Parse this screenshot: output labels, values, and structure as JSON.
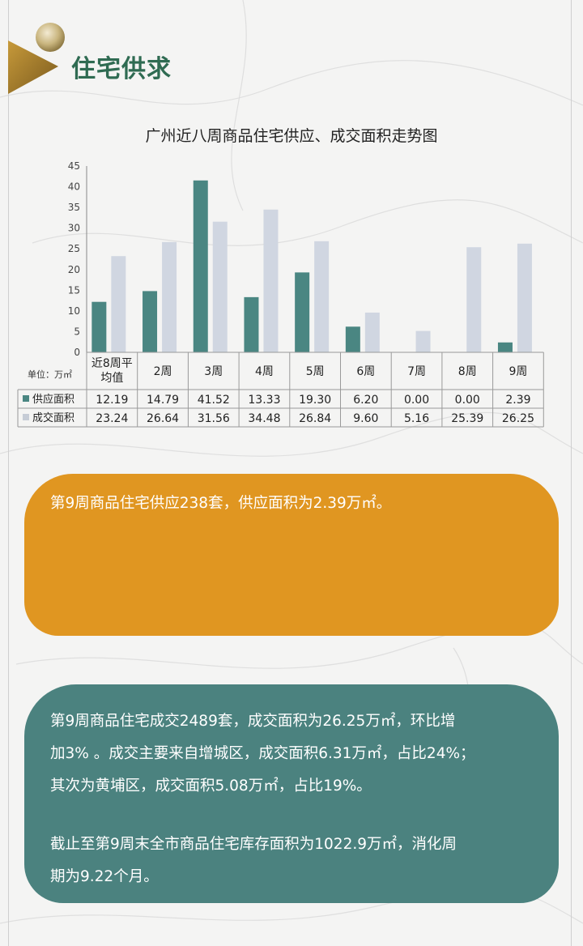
{
  "section": {
    "title": "住宅供求"
  },
  "chart_data": {
    "type": "bar",
    "title": "广州近八周商品住宅供应、成交面积走势图",
    "unit_label": "单位：万㎡",
    "categories": [
      "近8周平均值",
      "2周",
      "3周",
      "4周",
      "5周",
      "6周",
      "7周",
      "8周",
      "9周"
    ],
    "category_lines": [
      [
        "近8周平",
        "均值"
      ],
      [
        "2周"
      ],
      [
        "3周"
      ],
      [
        "4周"
      ],
      [
        "5周"
      ],
      [
        "6周"
      ],
      [
        "7周"
      ],
      [
        "8周"
      ],
      [
        "9周"
      ]
    ],
    "ylim": [
      0,
      45
    ],
    "yticks": [
      0,
      5,
      10,
      15,
      20,
      25,
      30,
      35,
      40,
      45
    ],
    "series": [
      {
        "name": "供应面积",
        "color": "#4a8682",
        "values": [
          12.19,
          14.79,
          41.52,
          13.33,
          19.3,
          6.2,
          0.0,
          0.0,
          2.39
        ],
        "labels": [
          "12.19",
          "14.79",
          "41.52",
          "13.33",
          "19.30",
          "6.20",
          "0.00",
          "0.00",
          "2.39"
        ]
      },
      {
        "name": "成交面积",
        "color": "#d0d6e1",
        "values": [
          23.24,
          26.64,
          31.56,
          34.48,
          26.84,
          9.6,
          5.16,
          25.39,
          26.25
        ],
        "labels": [
          "23.24",
          "26.64",
          "31.56",
          "34.48",
          "26.84",
          "9.60",
          "5.16",
          "25.39",
          "26.25"
        ]
      }
    ],
    "data_table": true,
    "grid": false
  },
  "supply_card": {
    "text": "第9周商品住宅供应238套，供应面积为2.39万㎡。"
  },
  "deal_card": {
    "line1": "第9周商品住宅成交2489套，成交面积为26.25万㎡，环比增",
    "line2": "加3% 。成交主要来自增城区，成交面积6.31万㎡，占比24%；",
    "line3": "其次为黄埔区，成交面积5.08万㎡，占比19%。",
    "line4": "截止至第9周末全市商品住宅库存面积为1022.9万㎡，消化周",
    "line5": "期为9.22个月。"
  },
  "colors": {
    "orange": "#e09621",
    "teal": "#4b827f",
    "title_green": "#2f6b52",
    "badge_gold": "#b08a3e"
  }
}
